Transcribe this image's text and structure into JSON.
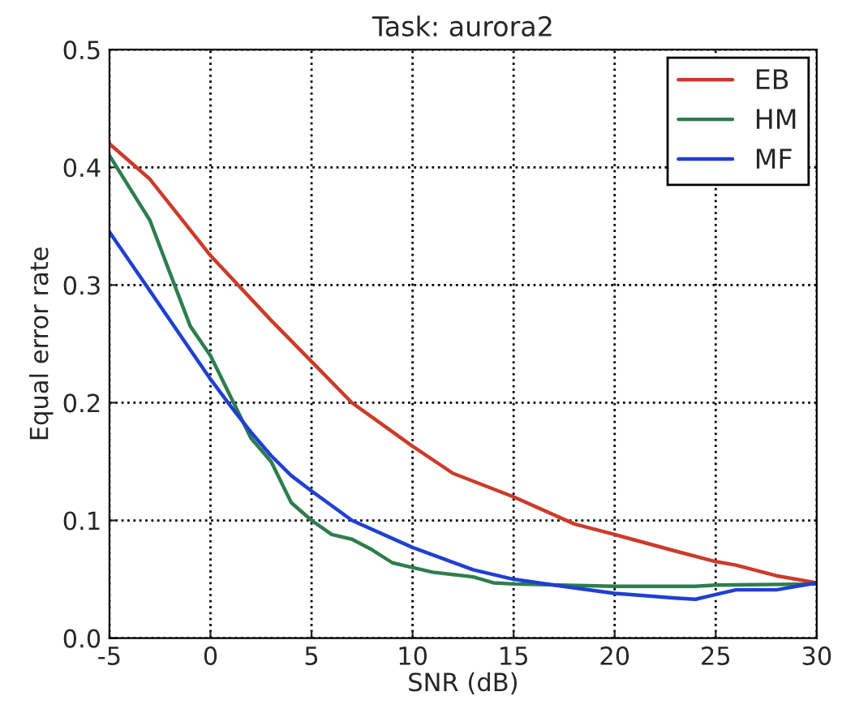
{
  "chart_data": {
    "type": "line",
    "title": "Task: aurora2",
    "xlabel": "SNR (dB)",
    "ylabel": "Equal error rate",
    "xlim": [
      -5,
      30
    ],
    "xticks": [
      -5,
      0,
      5,
      10,
      15,
      20,
      25,
      30
    ],
    "ylim": [
      0,
      0.5
    ],
    "yticks": [
      {
        "value": 0,
        "label": "0.0"
      },
      0.1,
      0.2,
      0.3,
      0.4,
      0.5
    ],
    "grid": true,
    "legend": "top right",
    "line_style": "solid",
    "marker": "none",
    "series": [
      {
        "name": "EB",
        "color": "#cc3b2a",
        "x": [
          -5,
          -3,
          0,
          3,
          5,
          7,
          10,
          12,
          15,
          18,
          20,
          23,
          25,
          26,
          28,
          30
        ],
        "values": [
          0.42,
          0.39,
          0.325,
          0.27,
          0.235,
          0.2,
          0.163,
          0.14,
          0.12,
          0.097,
          0.088,
          0.074,
          0.065,
          0.062,
          0.053,
          0.047
        ]
      },
      {
        "name": "HM",
        "color": "#2e7d4f",
        "x": [
          -5,
          -3,
          -2,
          -1,
          0,
          1,
          2,
          3,
          4,
          5,
          6,
          7,
          8,
          9,
          10,
          11,
          12,
          13,
          14,
          15,
          20,
          24,
          25,
          30
        ],
        "values": [
          0.41,
          0.355,
          0.31,
          0.265,
          0.24,
          0.205,
          0.17,
          0.15,
          0.115,
          0.1,
          0.088,
          0.084,
          0.075,
          0.064,
          0.06,
          0.056,
          0.054,
          0.052,
          0.047,
          0.046,
          0.044,
          0.044,
          0.045,
          0.046
        ]
      },
      {
        "name": "MF",
        "color": "#2040d0",
        "x": [
          -5,
          -3,
          -1,
          0,
          1,
          2,
          3,
          4,
          5,
          7,
          10,
          13,
          15,
          17,
          20,
          23,
          24,
          25,
          26,
          28,
          30
        ],
        "values": [
          0.345,
          0.295,
          0.245,
          0.22,
          0.197,
          0.175,
          0.155,
          0.138,
          0.125,
          0.1,
          0.077,
          0.058,
          0.05,
          0.045,
          0.038,
          0.034,
          0.033,
          0.037,
          0.041,
          0.041,
          0.047
        ]
      }
    ]
  }
}
